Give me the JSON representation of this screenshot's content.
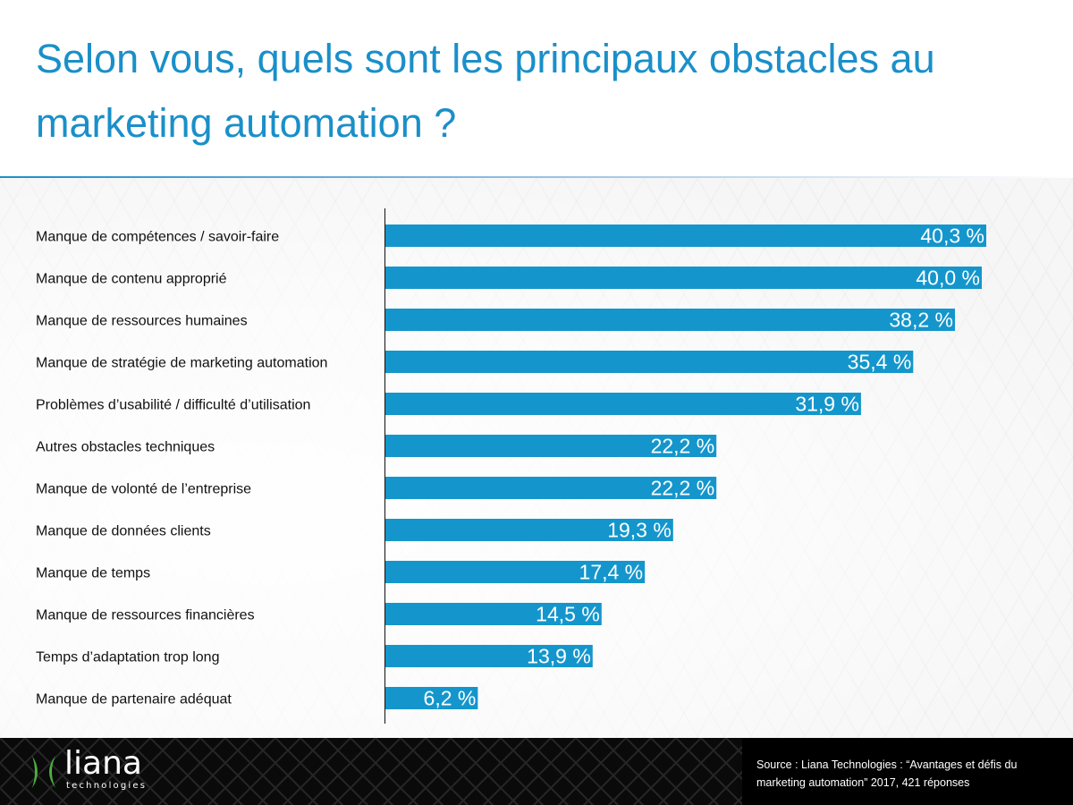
{
  "title": "Selon vous, quels sont les principaux obstacles au marketing automation ?",
  "footer": {
    "logo_word": "liana",
    "logo_sub": "technologies",
    "source": "Source : Liana Technologies : “Avantages et défis du marketing automation” 2017, 421 réponses"
  },
  "colors": {
    "bar": "#1496cc",
    "title": "#1a8fc9",
    "logo_green": "#4caf3f"
  },
  "chart_data": {
    "type": "bar",
    "orientation": "horizontal",
    "title": "Selon vous, quels sont les principaux obstacles au marketing automation ?",
    "xlabel": "",
    "ylabel": "",
    "unit": "%",
    "xlim": [
      0,
      40.3
    ],
    "grid": false,
    "categories": [
      "Manque de compétences / savoir-faire",
      "Manque de contenu approprié",
      "Manque de ressources humaines",
      "Manque de stratégie de marketing automation",
      "Problèmes d’usabilité / difficulté d’utilisation",
      "Autres obstacles techniques",
      "Manque de volonté de l’entreprise",
      "Manque de données clients",
      "Manque de temps",
      "Manque de ressources financières",
      "Temps d’adaptation trop long",
      "Manque de partenaire adéquat"
    ],
    "values": [
      40.3,
      40.0,
      38.2,
      35.4,
      31.9,
      22.2,
      22.2,
      19.3,
      17.4,
      14.5,
      13.9,
      6.2
    ],
    "data_labels": [
      "40,3 %",
      "40,0 %",
      "38,2 %",
      "35,4 %",
      "31,9 %",
      "22,2 %",
      "22,2 %",
      "19,3 %",
      "17,4 %",
      "14,5 %",
      "13,9 %",
      "6,2 %"
    ],
    "source": "Liana Technologies : “Avantages et défis du marketing automation” 2017, 421 réponses"
  }
}
